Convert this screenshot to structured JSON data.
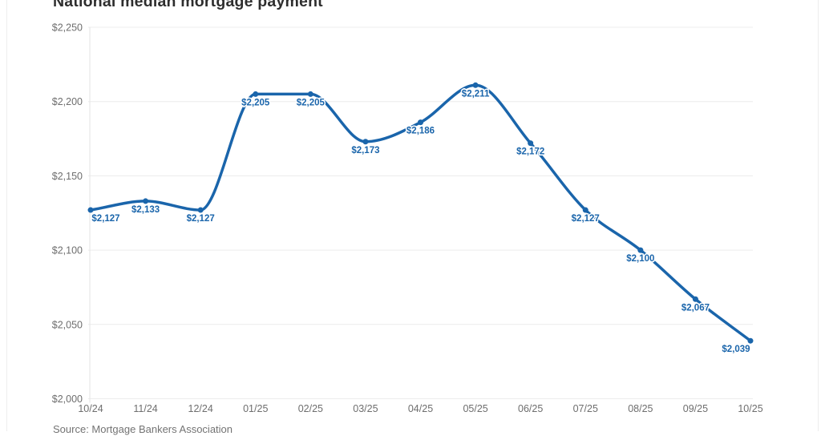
{
  "chart_data": {
    "type": "line",
    "title": "National median mortgage payment",
    "source": "Source: Mortgage Bankers Association",
    "categories": [
      "10/24",
      "11/24",
      "12/24",
      "01/25",
      "02/25",
      "03/25",
      "04/25",
      "05/25",
      "06/25",
      "07/25",
      "08/25",
      "09/25",
      "10/25"
    ],
    "values": [
      2127,
      2133,
      2127,
      2205,
      2205,
      2173,
      2186,
      2211,
      2172,
      2127,
      2100,
      2067,
      2039
    ],
    "point_labels": [
      "$2,127",
      "$2,133",
      "$2,127",
      "$2,205",
      "$2,205",
      "$2,173",
      "$2,186",
      "$2,211",
      "$2,172",
      "$2,127",
      "$2,100",
      "$2,067",
      "$2,039"
    ],
    "xlabel": "",
    "ylabel": "",
    "ylim": [
      2000,
      2250
    ],
    "ytick_values": [
      2000,
      2050,
      2100,
      2150,
      2200,
      2250
    ],
    "ytick_labels": [
      "$2,000",
      "$2,050",
      "$2,100",
      "$2,150",
      "$2,200",
      "$2,250"
    ],
    "grid": "horizontal gridlines on, vertical off",
    "legend_position": "none",
    "colors": {
      "line": "#1a65ab",
      "point_label": "#1a65ab",
      "axis_text": "#6e6e6e",
      "gridline": "#ececec",
      "axis_line": "#e3e3e3",
      "title": "#2e2e2e",
      "source_text": "#737373",
      "background": "#ffffff"
    }
  }
}
